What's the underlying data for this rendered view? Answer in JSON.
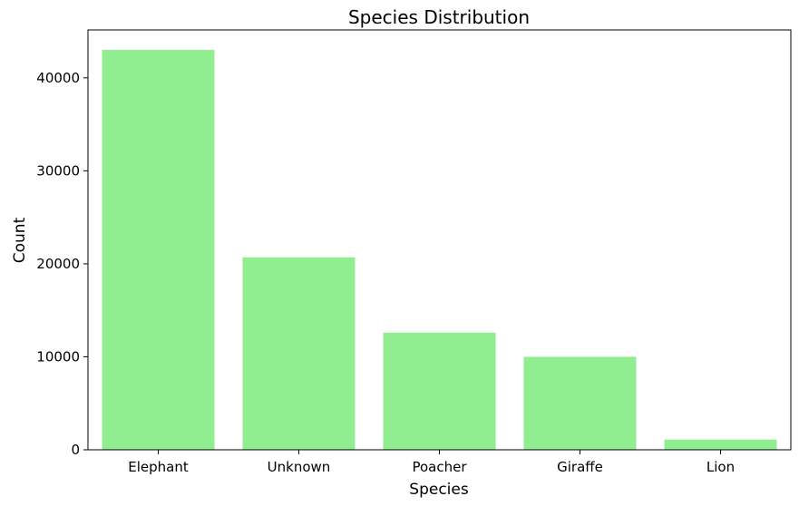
{
  "chart_data": {
    "type": "bar",
    "title": "Species Distribution",
    "xlabel": "Species",
    "ylabel": "Count",
    "categories": [
      "Elephant",
      "Unknown",
      "Poacher",
      "Giraffe",
      "Lion"
    ],
    "values": [
      43000,
      20700,
      12600,
      10000,
      1100
    ],
    "ylim": [
      0,
      45150
    ],
    "yticks": [
      0,
      10000,
      20000,
      30000,
      40000
    ],
    "bar_color": "#90ee90",
    "grid": false,
    "legend": "none"
  }
}
